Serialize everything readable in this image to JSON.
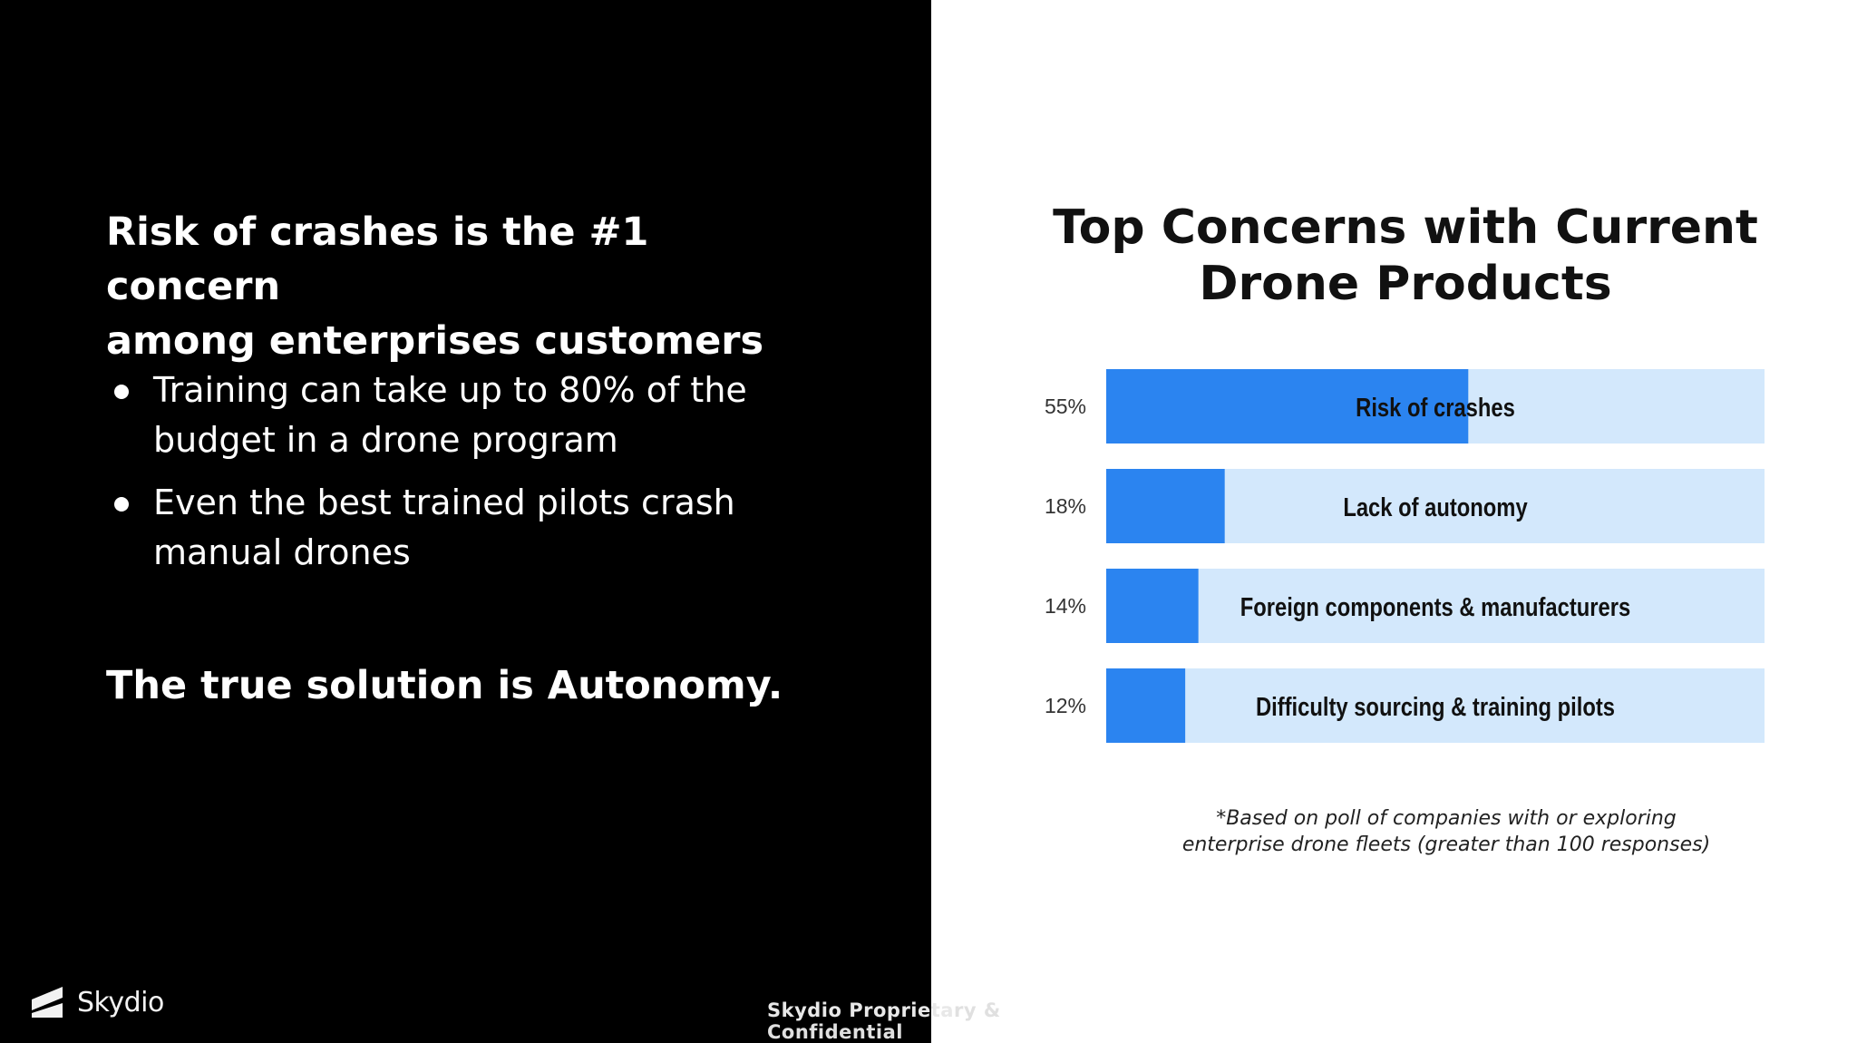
{
  "left_panel": {
    "headline_line1": "Risk of crashes is the #1 concern",
    "headline_line2": "among enterprises customers",
    "bullets": [
      "Training can take up to 80% of the budget in a drone program",
      "Even the best trained pilots crash manual drones"
    ],
    "conclusion": "The true solution is Autonomy.",
    "logo_text": "Skydio",
    "logo_icon": "skydio-logo-icon"
  },
  "footer": {
    "text_left": "Skydio Proprieta",
    "text_right": "ry & Confidential"
  },
  "chart_data": {
    "type": "bar",
    "orientation": "horizontal",
    "title_line1": "Top Concerns with Current",
    "title_line2": "Drone Products",
    "categories": [
      "Risk of crashes",
      "Lack of autonomy",
      "Foreign components & manufacturers",
      "Difficulty sourcing & training pilots"
    ],
    "value_labels": [
      "55%",
      "18%",
      "14%",
      "12%"
    ],
    "values": [
      55,
      18,
      14,
      12
    ],
    "xlim": [
      0,
      100
    ],
    "grid": false,
    "bar_color": "#2b84f0",
    "track_color": "#d3e8fc",
    "note_line1": "*Based on poll of companies with or exploring",
    "note_line2": "enterprise drone fleets (greater than 100 responses)"
  }
}
